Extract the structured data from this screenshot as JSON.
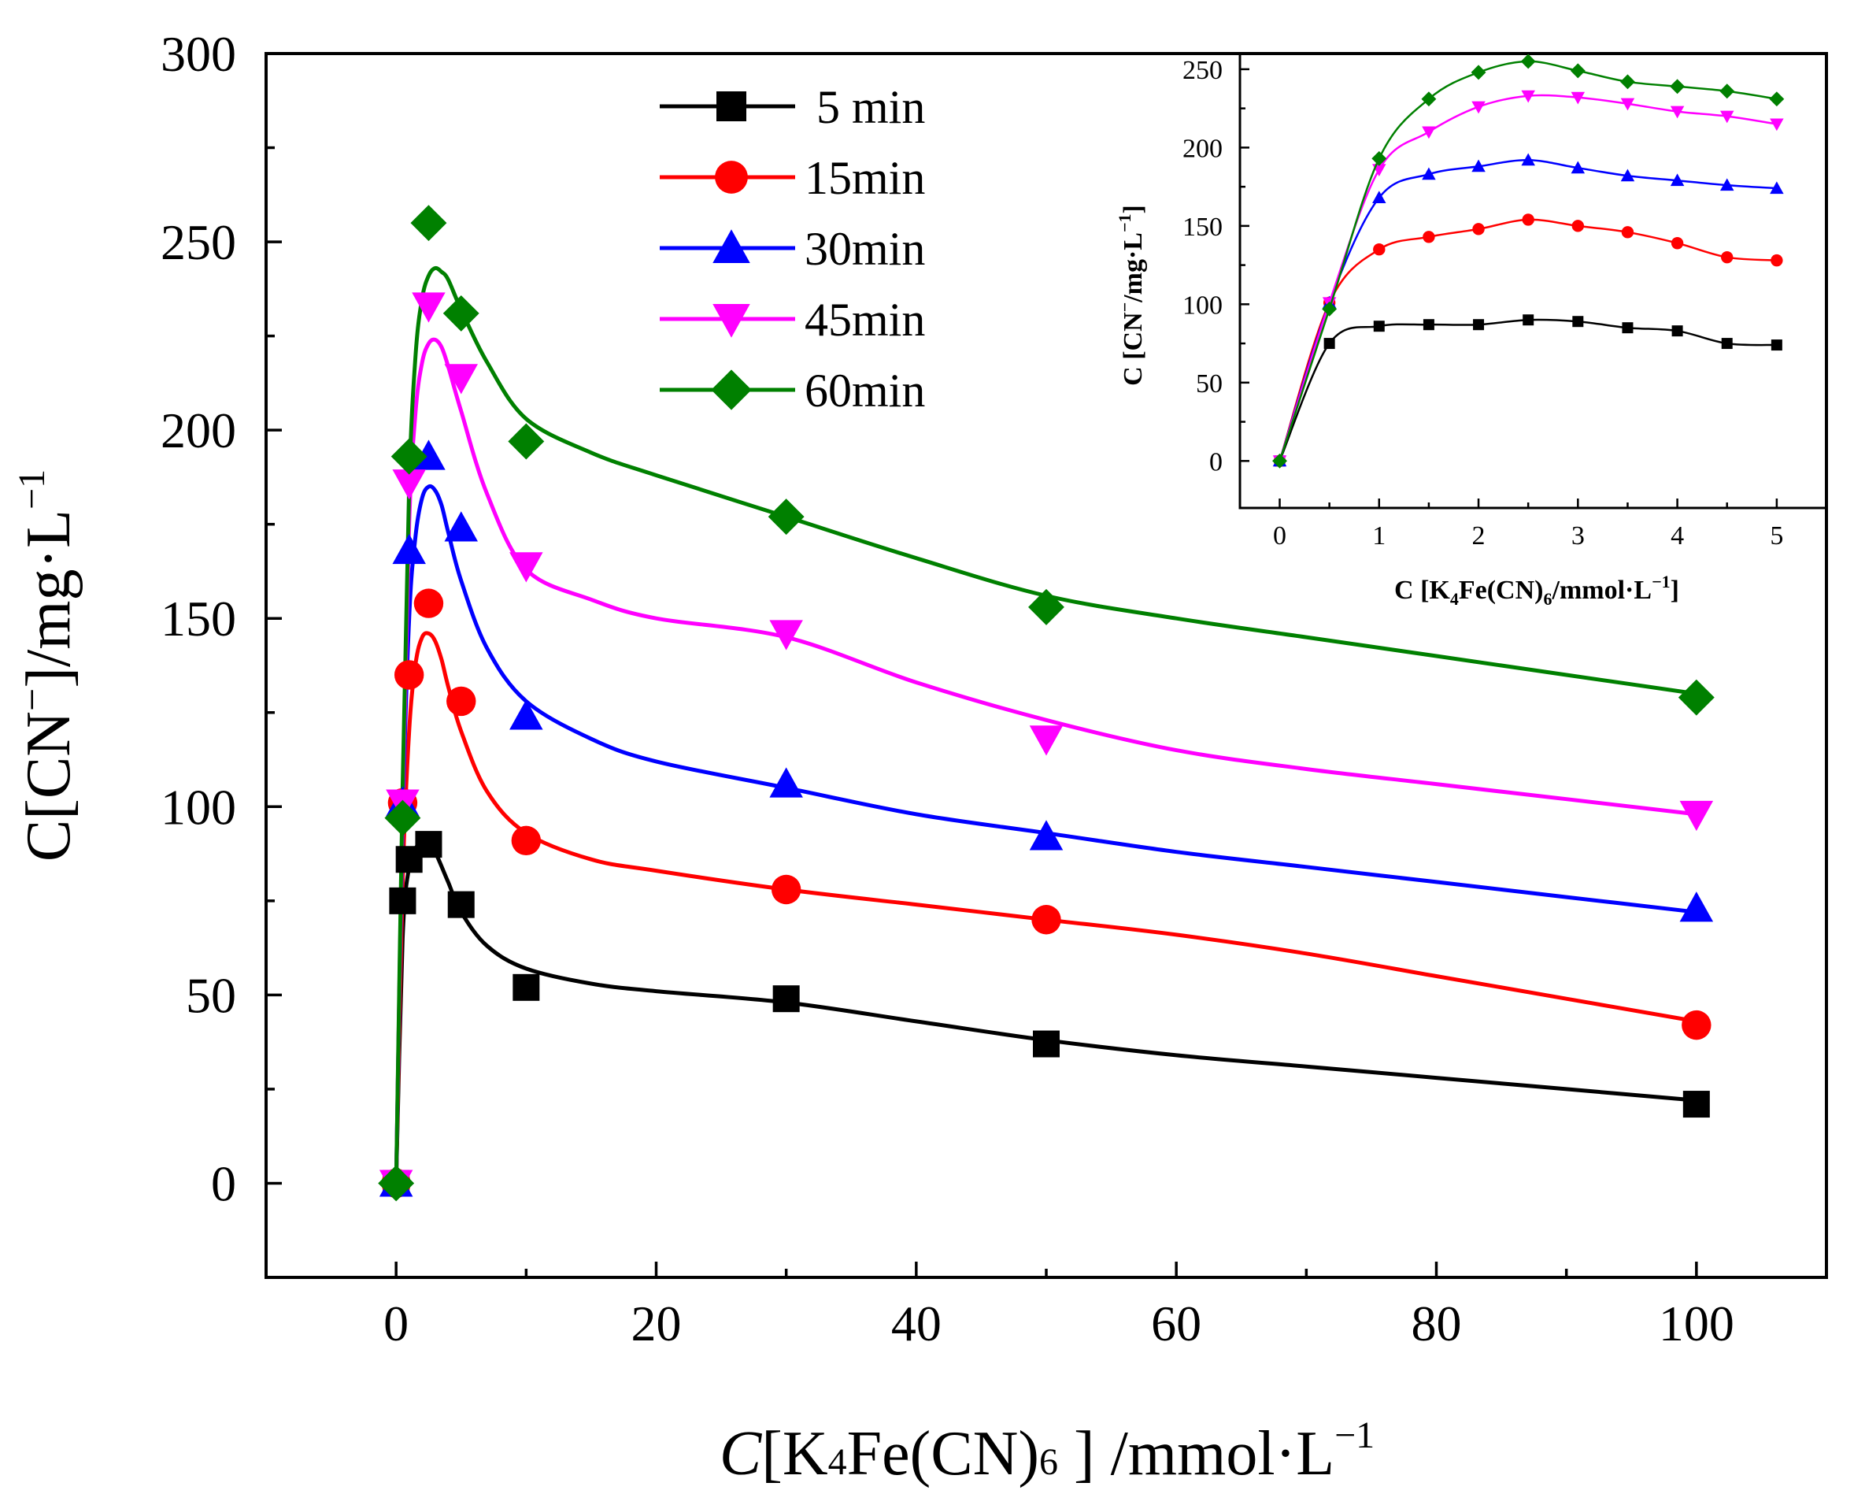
{
  "chart_data": [
    {
      "type": "scatter",
      "role": "main",
      "title": "",
      "xlabel": {
        "prefix": "C",
        "open": "[K",
        "sub1": "4",
        "mid": "Fe(CN)",
        "sub2": "6",
        "close": " ] /mmol·L",
        "sup": "−1"
      },
      "ylabel": {
        "prefix": "C[CN",
        "sup": "−",
        "suffix": "]/mg·L",
        "sup2": "−1"
      },
      "xlim": [
        -10,
        110
      ],
      "ylim": [
        -25,
        300
      ],
      "xticks": [
        0,
        20,
        40,
        60,
        80,
        100
      ],
      "xtick_labels": [
        "0",
        "20",
        "40",
        "60",
        "80",
        "100"
      ],
      "yticks": [
        0,
        50,
        100,
        150,
        200,
        250,
        300
      ],
      "ytick_labels": [
        "0",
        "50",
        "100",
        "150",
        "200",
        "250",
        "300"
      ],
      "grid": false,
      "legend_position": "top-center",
      "series": [
        {
          "name": "5 min",
          "color": "#000000",
          "marker": "square",
          "x": [
            0,
            0.5,
            1,
            2.5,
            5,
            10,
            30,
            50,
            100
          ],
          "y": [
            0,
            75,
            86,
            90,
            74,
            52,
            49,
            37,
            21
          ],
          "fit_x": [
            0,
            0.5,
            1,
            1.5,
            2,
            2.5,
            3,
            4,
            5,
            7,
            10,
            15,
            20,
            30,
            40,
            50,
            60,
            70,
            80,
            90,
            100
          ],
          "fit_y": [
            0,
            65,
            84,
            89,
            90,
            90,
            88,
            80,
            72,
            63,
            57,
            53,
            51,
            48,
            43,
            38,
            34,
            31,
            28,
            25,
            22
          ]
        },
        {
          "name": "15min",
          "color": "#ff0000",
          "marker": "circle",
          "x": [
            0,
            0.5,
            1,
            2.5,
            5,
            10,
            30,
            50,
            100
          ],
          "y": [
            0,
            101,
            135,
            154,
            128,
            91,
            78,
            70,
            42
          ],
          "fit_x": [
            0,
            0.5,
            1,
            1.5,
            2,
            2.5,
            3,
            3.5,
            4,
            5,
            7,
            10,
            15,
            20,
            30,
            40,
            50,
            60,
            70,
            80,
            90,
            100
          ],
          "fit_y": [
            0,
            80,
            120,
            138,
            145,
            146,
            144,
            139,
            132,
            120,
            104,
            93,
            86,
            83,
            78,
            74,
            70,
            66,
            61,
            55,
            49,
            43
          ]
        },
        {
          "name": "30min",
          "color": "#0000ff",
          "marker": "triangle-up",
          "x": [
            0,
            0.5,
            1,
            2.5,
            5,
            10,
            30,
            50,
            100
          ],
          "y": [
            0,
            101,
            168,
            193,
            174,
            124,
            106,
            92,
            73
          ],
          "fit_x": [
            0,
            0.5,
            1,
            1.5,
            2,
            2.5,
            3,
            3.5,
            4,
            5,
            7,
            10,
            15,
            20,
            30,
            40,
            50,
            60,
            70,
            80,
            90,
            100
          ],
          "fit_y": [
            0,
            95,
            150,
            172,
            182,
            185,
            184,
            180,
            173,
            160,
            142,
            128,
            118,
            112,
            105,
            98,
            93,
            88,
            84,
            80,
            76,
            72
          ]
        },
        {
          "name": "45min",
          "color": "#ff00ff",
          "marker": "triangle-down",
          "x": [
            0,
            0.5,
            1,
            2.5,
            5,
            10,
            30,
            50,
            100
          ],
          "y": [
            0,
            101,
            186,
            233,
            214,
            164,
            146,
            118,
            98
          ],
          "fit_x": [
            0,
            0.5,
            1,
            1.5,
            2,
            2.5,
            3,
            3.5,
            4,
            5,
            7,
            10,
            15,
            20,
            30,
            40,
            50,
            60,
            70,
            80,
            90,
            100
          ],
          "fit_y": [
            0,
            100,
            175,
            205,
            218,
            223,
            224,
            222,
            217,
            205,
            183,
            163,
            155,
            150,
            145,
            133,
            123,
            115,
            110,
            106,
            102,
            98
          ]
        },
        {
          "name": "60min",
          "color": "#008000",
          "marker": "diamond",
          "x": [
            0,
            0.5,
            1,
            2.5,
            5,
            10,
            30,
            50,
            100
          ],
          "y": [
            0,
            97,
            193,
            255,
            231,
            197,
            177,
            153,
            129
          ],
          "fit_x": [
            0,
            0.5,
            1,
            1.5,
            2,
            2.5,
            3,
            3.5,
            4,
            5,
            7,
            10,
            15,
            20,
            30,
            40,
            50,
            60,
            70,
            80,
            90,
            100
          ],
          "fit_y": [
            0,
            105,
            185,
            220,
            235,
            241,
            243,
            242,
            240,
            232,
            218,
            203,
            194,
            188,
            177,
            166,
            156,
            150,
            145,
            140,
            135,
            130
          ]
        }
      ]
    },
    {
      "type": "line",
      "role": "inset",
      "title": "",
      "xlabel": {
        "prefix": "C [K",
        "sub1": "4",
        "mid": "Fe(CN)",
        "sub2": "6",
        "close": "/mmol·L",
        "sup": "−1",
        "end": "]"
      },
      "ylabel": {
        "prefix": "C [CN",
        "sup": "−",
        "suffix": "/mg·L",
        "sup2": "−1",
        "end": "]"
      },
      "xlim": [
        -0.4,
        5.5
      ],
      "ylim": [
        -30,
        260
      ],
      "xticks": [
        0,
        1,
        2,
        3,
        4,
        5
      ],
      "xtick_labels": [
        "0",
        "1",
        "2",
        "3",
        "4",
        "5"
      ],
      "yticks": [
        0,
        50,
        100,
        150,
        200,
        250
      ],
      "ytick_labels": [
        "0",
        "50",
        "100",
        "150",
        "200",
        "250"
      ],
      "grid": false,
      "legend_position": "none",
      "series": [
        {
          "name": "5 min",
          "color": "#000000",
          "marker": "square",
          "x": [
            0,
            0.5,
            1,
            1.5,
            2,
            2.5,
            3,
            3.5,
            4,
            4.5,
            5
          ],
          "y": [
            0,
            75,
            86,
            87,
            87,
            90,
            89,
            85,
            83,
            75,
            74
          ]
        },
        {
          "name": "15min",
          "color": "#ff0000",
          "marker": "circle",
          "x": [
            0,
            0.5,
            1,
            1.5,
            2,
            2.5,
            3,
            3.5,
            4,
            4.5,
            5
          ],
          "y": [
            0,
            101,
            135,
            143,
            148,
            154,
            150,
            146,
            139,
            130,
            128
          ]
        },
        {
          "name": "30min",
          "color": "#0000ff",
          "marker": "triangle-up",
          "x": [
            0,
            0.5,
            1,
            1.5,
            2,
            2.5,
            3,
            3.5,
            4,
            4.5,
            5
          ],
          "y": [
            0,
            101,
            168,
            183,
            188,
            192,
            187,
            182,
            179,
            176,
            174
          ]
        },
        {
          "name": "45min",
          "color": "#ff00ff",
          "marker": "triangle-down",
          "x": [
            0,
            0.5,
            1,
            1.5,
            2,
            2.5,
            3,
            3.5,
            4,
            4.5,
            5
          ],
          "y": [
            0,
            101,
            186,
            210,
            226,
            233,
            232,
            228,
            223,
            220,
            215
          ]
        },
        {
          "name": "60min",
          "color": "#008000",
          "marker": "diamond",
          "x": [
            0,
            0.5,
            1,
            1.5,
            2,
            2.5,
            3,
            3.5,
            4,
            4.5,
            5
          ],
          "y": [
            0,
            97,
            193,
            231,
            248,
            255,
            249,
            242,
            239,
            236,
            231
          ]
        }
      ]
    }
  ]
}
